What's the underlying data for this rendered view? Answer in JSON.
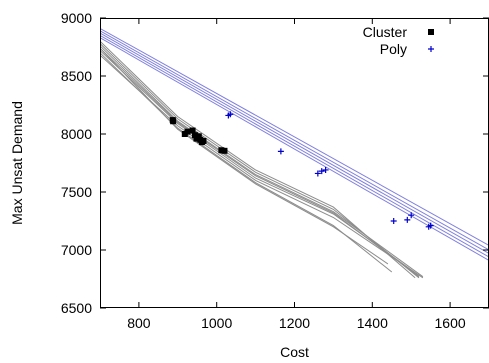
{
  "chart_data": {
    "type": "line",
    "xlabel": "Cost",
    "ylabel": "Max Unsat Demand",
    "xlim": [
      700,
      1700
    ],
    "ylim": [
      6500,
      9000
    ],
    "xticks": [
      800,
      1000,
      1200,
      1400,
      1600
    ],
    "yticks": [
      6500,
      7000,
      7500,
      8000,
      8500,
      9000
    ],
    "grid": false,
    "legend_position": "top-right",
    "colors": {
      "cluster": "#000000",
      "poly": "#0000cc",
      "cluster_curves": "#8c8c8c",
      "poly_curves": "#8080e0"
    },
    "series": [
      {
        "name": "Cluster",
        "marker": "square",
        "points": [
          [
            887,
            8120
          ],
          [
            888,
            8110
          ],
          [
            918,
            8000
          ],
          [
            925,
            8020
          ],
          [
            938,
            8030
          ],
          [
            944,
            7990
          ],
          [
            948,
            7960
          ],
          [
            954,
            7980
          ],
          [
            958,
            7950
          ],
          [
            962,
            7930
          ],
          [
            966,
            7940
          ],
          [
            1012,
            7860
          ],
          [
            1020,
            7855
          ]
        ],
        "curves": [
          [
            [
              700,
              8740
            ],
            [
              900,
              8040
            ],
            [
              1100,
              7570
            ],
            [
              1300,
              7200
            ],
            [
              1440,
              6880
            ]
          ],
          [
            [
              700,
              8700
            ],
            [
              900,
              8050
            ],
            [
              1100,
              7580
            ],
            [
              1300,
              7210
            ],
            [
              1450,
              6810
            ]
          ],
          [
            [
              700,
              8720
            ],
            [
              900,
              8090
            ],
            [
              1100,
              7620
            ],
            [
              1300,
              7310
            ],
            [
              1520,
              6780
            ]
          ],
          [
            [
              700,
              8760
            ],
            [
              900,
              8110
            ],
            [
              1100,
              7650
            ],
            [
              1300,
              7330
            ],
            [
              1530,
              6770
            ]
          ],
          [
            [
              700,
              8780
            ],
            [
              900,
              8130
            ],
            [
              1100,
              7670
            ],
            [
              1300,
              7350
            ],
            [
              1520,
              6760
            ]
          ],
          [
            [
              700,
              8800
            ],
            [
              900,
              8150
            ],
            [
              1100,
              7690
            ],
            [
              1300,
              7370
            ],
            [
              1510,
              6760
            ]
          ],
          [
            [
              700,
              8680
            ],
            [
              900,
              8070
            ],
            [
              1100,
              7600
            ],
            [
              1300,
              7280
            ],
            [
              1530,
              6760
            ]
          ],
          [
            [
              700,
              8740
            ],
            [
              900,
              8100
            ],
            [
              1100,
              7640
            ],
            [
              1300,
              7320
            ],
            [
              1520,
              6770
            ]
          ]
        ]
      },
      {
        "name": "Poly",
        "marker": "plus",
        "points": [
          [
            1030,
            8160
          ],
          [
            1035,
            8170
          ],
          [
            1165,
            7850
          ],
          [
            1260,
            7660
          ],
          [
            1270,
            7680
          ],
          [
            1280,
            7690
          ],
          [
            1455,
            7250
          ],
          [
            1490,
            7260
          ],
          [
            1500,
            7300
          ],
          [
            1545,
            7200
          ],
          [
            1550,
            7210
          ]
        ],
        "curves": [
          [
            [
              700,
              8830
            ],
            [
              1700,
              6910
            ]
          ],
          [
            [
              700,
              8850
            ],
            [
              1700,
              6940
            ]
          ],
          [
            [
              700,
              8870
            ],
            [
              1700,
              6970
            ]
          ],
          [
            [
              700,
              8890
            ],
            [
              1700,
              7000
            ]
          ],
          [
            [
              700,
              8910
            ],
            [
              1700,
              7040
            ]
          ]
        ]
      }
    ]
  }
}
